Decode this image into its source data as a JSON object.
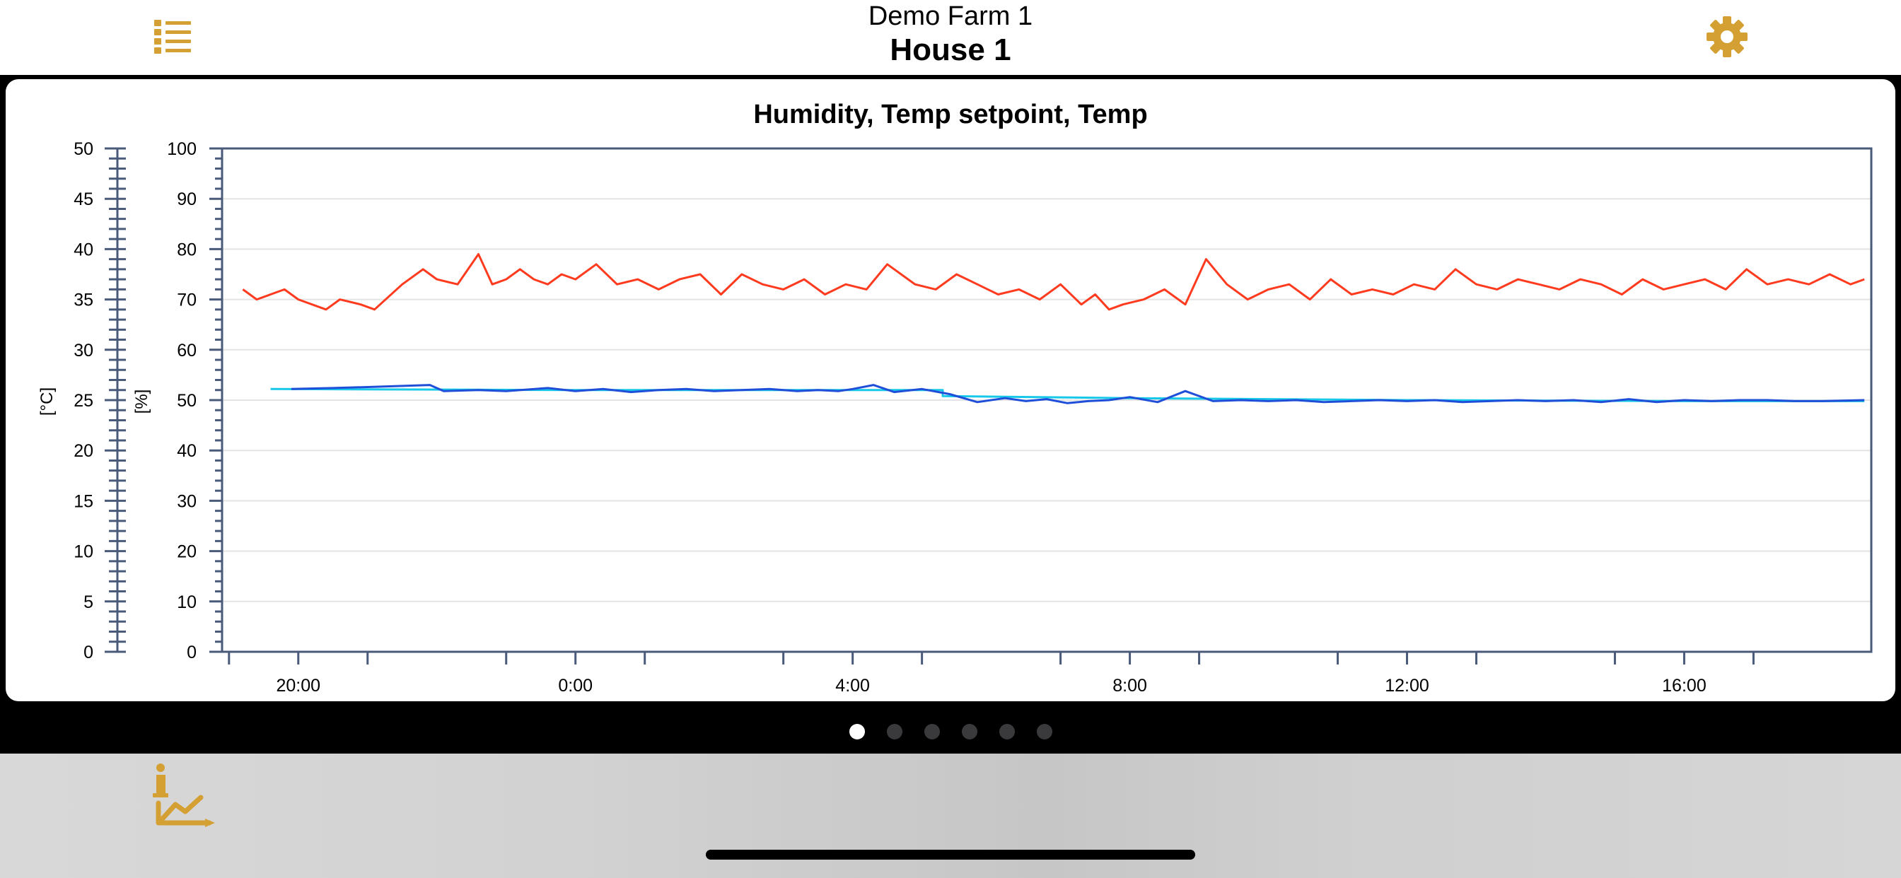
{
  "header": {
    "farm_name": "Demo Farm 1",
    "house_name": "House 1",
    "menu_icon": "list-icon",
    "settings_icon": "gear-icon",
    "accent_color": "#d4a033"
  },
  "chart": {
    "title": "Humidity, Temp setpoint, Temp",
    "left_axis_unit": "[°C]",
    "right_axis_unit": "[%]",
    "celsius_ticks": [
      "50",
      "45",
      "40",
      "35",
      "30",
      "25",
      "20",
      "15",
      "10",
      "5",
      "0"
    ],
    "percent_ticks": [
      "100",
      "90",
      "80",
      "70",
      "60",
      "50",
      "40",
      "30",
      "20",
      "10",
      "0"
    ],
    "time_ticks": [
      "20:00",
      "0:00",
      "4:00",
      "8:00",
      "12:00",
      "16:00"
    ]
  },
  "chart_data": {
    "type": "line",
    "title": "Humidity, Temp setpoint, Temp",
    "xlabel": "",
    "ylabel_left": "[°C]",
    "ylabel_right": "[%]",
    "xlim_hours": [
      18.9,
      42.7
    ],
    "x_tick_labels": [
      "20:00",
      "0:00",
      "4:00",
      "8:00",
      "12:00",
      "16:00"
    ],
    "ylim_celsius": [
      0,
      50
    ],
    "ylim_percent": [
      0,
      100
    ],
    "grid": true,
    "series": [
      {
        "name": "",
        "axis": "percent",
        "color": "#ff3b1f",
        "x_hours": [
          19.2,
          19.4,
          19.8,
          20.0,
          20.4,
          20.6,
          20.9,
          21.1,
          21.5,
          21.8,
          22.0,
          22.3,
          22.6,
          22.8,
          23.0,
          23.2,
          23.4,
          23.6,
          23.8,
          24.0,
          24.3,
          24.6,
          24.9,
          25.2,
          25.5,
          25.8,
          26.1,
          26.4,
          26.7,
          27.0,
          27.3,
          27.6,
          27.9,
          28.2,
          28.5,
          28.7,
          28.9,
          29.2,
          29.5,
          29.8,
          30.1,
          30.4,
          30.7,
          31.0,
          31.3,
          31.5,
          31.7,
          31.9,
          32.2,
          32.5,
          32.8,
          33.1,
          33.4,
          33.7,
          34.0,
          34.3,
          34.6,
          34.9,
          35.2,
          35.5,
          35.8,
          36.1,
          36.4,
          36.7,
          37.0,
          37.3,
          37.6,
          37.9,
          38.2,
          38.5,
          38.8,
          39.1,
          39.4,
          39.7,
          40.0,
          40.3,
          40.6,
          40.9,
          41.2,
          41.5,
          41.8,
          42.1,
          42.4,
          42.6
        ],
        "values": [
          72,
          70,
          72,
          70,
          68,
          70,
          69,
          68,
          73,
          76,
          74,
          73,
          79,
          73,
          74,
          76,
          74,
          73,
          75,
          74,
          77,
          73,
          74,
          72,
          74,
          75,
          71,
          75,
          73,
          72,
          74,
          71,
          73,
          72,
          77,
          75,
          73,
          72,
          75,
          73,
          71,
          72,
          70,
          73,
          69,
          71,
          68,
          69,
          70,
          72,
          69,
          78,
          73,
          70,
          72,
          73,
          70,
          74,
          71,
          72,
          71,
          73,
          72,
          76,
          73,
          72,
          74,
          73,
          72,
          74,
          73,
          71,
          74,
          72,
          73,
          74,
          72,
          76,
          73,
          74,
          73,
          75,
          73,
          74
        ]
      },
      {
        "name": "",
        "axis": "celsius",
        "color": "#18c8e8",
        "x_hours": [
          19.6,
          24.0,
          28.0,
          29.3,
          29.3,
          32.0,
          36.0,
          40.0,
          42.6
        ],
        "values": [
          26.1,
          26.0,
          26.0,
          26.0,
          25.4,
          25.2,
          25.0,
          24.9,
          24.9
        ]
      },
      {
        "name": "",
        "axis": "celsius",
        "color": "#1f4fd8",
        "x_hours": [
          19.9,
          20.5,
          21.0,
          21.9,
          22.1,
          22.6,
          23.0,
          23.6,
          24.0,
          24.4,
          24.8,
          25.2,
          25.6,
          26.0,
          26.4,
          26.8,
          27.2,
          27.5,
          27.8,
          28.0,
          28.3,
          28.6,
          29.0,
          29.4,
          29.8,
          30.2,
          30.5,
          30.8,
          31.1,
          31.4,
          31.7,
          32.0,
          32.4,
          32.8,
          33.2,
          33.6,
          34.0,
          34.4,
          34.8,
          35.2,
          35.6,
          36.0,
          36.4,
          36.8,
          37.2,
          37.6,
          38.0,
          38.4,
          38.8,
          39.2,
          39.6,
          40.0,
          40.4,
          40.8,
          41.2,
          41.6,
          42.0,
          42.6
        ],
        "values": [
          26.1,
          26.2,
          26.3,
          26.5,
          25.9,
          26.0,
          25.9,
          26.2,
          25.9,
          26.1,
          25.8,
          26.0,
          26.1,
          25.9,
          26.0,
          26.1,
          25.9,
          26.0,
          25.9,
          26.1,
          26.5,
          25.8,
          26.1,
          25.6,
          24.8,
          25.2,
          24.9,
          25.1,
          24.7,
          24.9,
          25.0,
          25.3,
          24.8,
          25.9,
          24.9,
          25.0,
          24.9,
          25.0,
          24.8,
          24.9,
          25.0,
          24.9,
          25.0,
          24.8,
          24.9,
          25.0,
          24.9,
          25.0,
          24.8,
          25.1,
          24.8,
          25.0,
          24.9,
          25.0,
          25.0,
          24.9,
          24.9,
          25.0
        ]
      }
    ]
  },
  "pager": {
    "dot_count": 6,
    "active_index": 0
  },
  "tabbar": {
    "icon": "info-chart-icon"
  }
}
